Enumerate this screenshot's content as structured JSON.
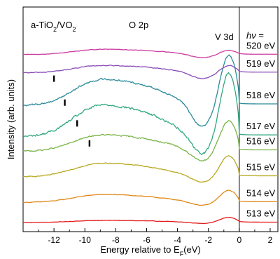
{
  "chart_data": {
    "type": "line",
    "xlabel": "Energy relative to E",
    "xlabel_sub": "F",
    "xlabel_unit": "(eV)",
    "ylabel": "Intensity (arb. units)",
    "xlim": [
      -14,
      2.5
    ],
    "xticks": [
      -12,
      -10,
      -8,
      -6,
      -4,
      -2,
      0,
      2
    ],
    "xtick_labels": [
      "-12",
      "-10",
      "-8",
      "-6",
      "-4",
      "-2",
      "0",
      "2"
    ],
    "grid": false,
    "fermi_line_x": 0,
    "annotations": {
      "sample_base": "a-TiO",
      "sample_sub1": "2",
      "sample_mid": "/VO",
      "sample_sub2": "2",
      "o2p": "O 2p",
      "v3d": "V 3d",
      "hv_label": "hν =",
      "hv_italic": "hν",
      "hv_eq": " ="
    },
    "series": [
      {
        "name": "513 eV",
        "label": "513 eV",
        "color": "#e41a1c",
        "offset": 0.0,
        "op": 0.08,
        "vp": 0.14,
        "dip": 0.03,
        "noise": 0.004,
        "pos": 0.01,
        "marker": null
      },
      {
        "name": "514 eV",
        "label": "514 eV",
        "color": "#e08a19",
        "offset": 0.55,
        "op": 0.3,
        "vp": 0.33,
        "dip": 0.1,
        "noise": 0.006,
        "pos": 0.02,
        "marker": null
      },
      {
        "name": "515 eV",
        "label": "515 eV",
        "color": "#b8a91e",
        "offset": 1.25,
        "op": 0.52,
        "vp": 0.58,
        "dip": 0.18,
        "noise": 0.008,
        "pos": 0.03,
        "marker": null
      },
      {
        "name": "516 eV",
        "label": "516 eV",
        "color": "#78b446",
        "offset": 1.95,
        "op": 0.62,
        "vp": 0.85,
        "dip": 0.3,
        "noise": 0.013,
        "pos": 0.04,
        "marker": -9.7
      },
      {
        "name": "517 eV",
        "label": "517 eV",
        "color": "#2fa87e",
        "offset": 2.35,
        "op": 1.2,
        "vp": 1.75,
        "dip": 0.55,
        "noise": 0.025,
        "pos": 0.05,
        "marker": -10.5
      },
      {
        "name": "518 eV",
        "label": "518 eV",
        "color": "#2a8a9a",
        "offset": 3.2,
        "op": 1.0,
        "vp": 1.4,
        "dip": 0.65,
        "noise": 0.018,
        "pos": 0.05,
        "marker": -11.3
      },
      {
        "name": "519 eV",
        "label": "519 eV",
        "color": "#8a4bb8",
        "offset": 4.1,
        "op": 0.28,
        "vp": 0.2,
        "dip": 0.18,
        "noise": 0.008,
        "pos": 0.02,
        "marker": -12.0
      },
      {
        "name": "520 eV",
        "label": "520 eV",
        "color": "#cc3aa0",
        "offset": 4.6,
        "op": 0.2,
        "vp": 0.12,
        "dip": 0.1,
        "noise": 0.006,
        "pos": 0.01,
        "marker": null
      }
    ]
  }
}
